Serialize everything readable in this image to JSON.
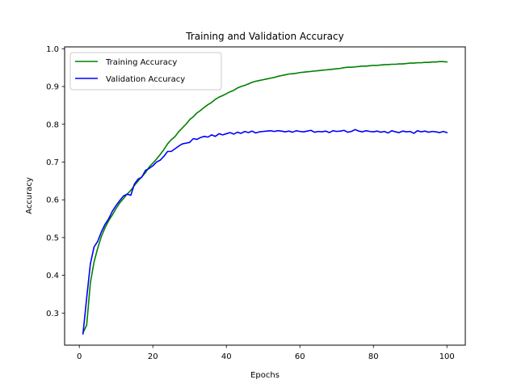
{
  "chart_data": {
    "type": "line",
    "title": "Training and Validation Accuracy",
    "xlabel": "Epochs",
    "ylabel": "Accuracy",
    "xlim": [
      -4,
      105
    ],
    "ylim": [
      0.215,
      1.005
    ],
    "xticks": [
      "0",
      "20",
      "40",
      "60",
      "80",
      "100"
    ],
    "xtick_values": [
      0,
      20,
      40,
      60,
      80,
      100
    ],
    "yticks": [
      "0.3",
      "0.4",
      "0.5",
      "0.6",
      "0.7",
      "0.8",
      "0.9",
      "1.0"
    ],
    "ytick_values": [
      0.3,
      0.4,
      0.5,
      0.6,
      0.7,
      0.8,
      0.9,
      1.0
    ],
    "grid": false,
    "legend_position": "top-left",
    "x": [
      1,
      2,
      3,
      4,
      5,
      6,
      7,
      8,
      9,
      10,
      11,
      12,
      13,
      14,
      15,
      16,
      17,
      18,
      19,
      20,
      21,
      22,
      23,
      24,
      25,
      26,
      27,
      28,
      29,
      30,
      31,
      32,
      33,
      34,
      35,
      36,
      37,
      38,
      39,
      40,
      41,
      42,
      43,
      44,
      45,
      46,
      47,
      48,
      49,
      50,
      51,
      52,
      53,
      54,
      55,
      56,
      57,
      58,
      59,
      60,
      61,
      62,
      63,
      64,
      65,
      66,
      67,
      68,
      69,
      70,
      71,
      72,
      73,
      74,
      75,
      76,
      77,
      78,
      79,
      80,
      81,
      82,
      83,
      84,
      85,
      86,
      87,
      88,
      89,
      90,
      91,
      92,
      93,
      94,
      95,
      96,
      97,
      98,
      99,
      100
    ],
    "series": [
      {
        "name": "Training Accuracy",
        "color": "#008000",
        "values": [
          0.248,
          0.268,
          0.38,
          0.435,
          0.472,
          0.503,
          0.526,
          0.545,
          0.56,
          0.577,
          0.592,
          0.603,
          0.615,
          0.625,
          0.638,
          0.65,
          0.661,
          0.672,
          0.687,
          0.697,
          0.708,
          0.72,
          0.733,
          0.748,
          0.759,
          0.767,
          0.78,
          0.79,
          0.8,
          0.812,
          0.82,
          0.83,
          0.837,
          0.845,
          0.852,
          0.858,
          0.866,
          0.872,
          0.876,
          0.881,
          0.886,
          0.89,
          0.896,
          0.9,
          0.903,
          0.907,
          0.911,
          0.914,
          0.916,
          0.918,
          0.92,
          0.922,
          0.924,
          0.927,
          0.929,
          0.931,
          0.933,
          0.934,
          0.935,
          0.937,
          0.938,
          0.939,
          0.94,
          0.941,
          0.942,
          0.943,
          0.944,
          0.945,
          0.946,
          0.947,
          0.948,
          0.95,
          0.951,
          0.951,
          0.952,
          0.953,
          0.954,
          0.954,
          0.955,
          0.956,
          0.956,
          0.957,
          0.958,
          0.958,
          0.959,
          0.959,
          0.96,
          0.96,
          0.961,
          0.962,
          0.962,
          0.963,
          0.963,
          0.964,
          0.964,
          0.965,
          0.965,
          0.966,
          0.966,
          0.965
        ]
      },
      {
        "name": "Validation Accuracy",
        "color": "#0000ff",
        "values": [
          0.245,
          0.34,
          0.43,
          0.475,
          0.49,
          0.515,
          0.535,
          0.55,
          0.57,
          0.585,
          0.598,
          0.61,
          0.615,
          0.612,
          0.642,
          0.655,
          0.66,
          0.678,
          0.683,
          0.69,
          0.7,
          0.705,
          0.715,
          0.728,
          0.728,
          0.735,
          0.742,
          0.748,
          0.75,
          0.752,
          0.762,
          0.76,
          0.765,
          0.768,
          0.766,
          0.772,
          0.768,
          0.775,
          0.772,
          0.775,
          0.778,
          0.774,
          0.779,
          0.776,
          0.781,
          0.778,
          0.782,
          0.777,
          0.78,
          0.781,
          0.782,
          0.783,
          0.781,
          0.783,
          0.782,
          0.78,
          0.782,
          0.779,
          0.783,
          0.781,
          0.78,
          0.782,
          0.784,
          0.779,
          0.781,
          0.78,
          0.782,
          0.778,
          0.783,
          0.781,
          0.782,
          0.784,
          0.779,
          0.781,
          0.786,
          0.782,
          0.78,
          0.783,
          0.781,
          0.78,
          0.782,
          0.779,
          0.781,
          0.777,
          0.783,
          0.78,
          0.778,
          0.782,
          0.78,
          0.781,
          0.776,
          0.783,
          0.78,
          0.782,
          0.779,
          0.781,
          0.78,
          0.778,
          0.781,
          0.778
        ]
      }
    ]
  }
}
